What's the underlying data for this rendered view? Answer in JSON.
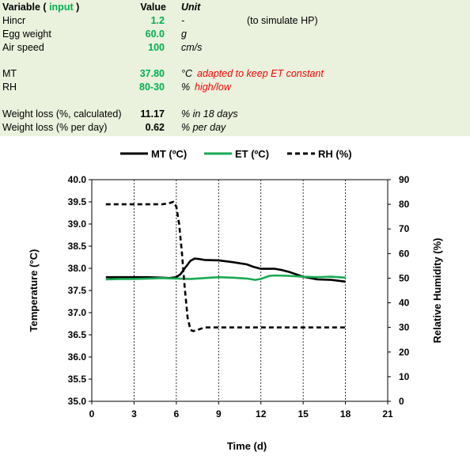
{
  "params": {
    "header": {
      "variable": "Variable (",
      "input_word": "input",
      "close_paren": ")",
      "value": "Value",
      "unit": "Unit"
    },
    "rows": [
      {
        "label": "Hincr",
        "value": "1.2",
        "unit": "-",
        "note": "(to simulate HP)",
        "value_color": "#00b050"
      },
      {
        "label": "Egg weight",
        "value": "60.0",
        "unit": "g",
        "note": "",
        "value_color": "#00b050"
      },
      {
        "label": "Air speed",
        "value": "100",
        "unit": "cm/s",
        "note": "",
        "value_color": "#00b050"
      },
      {
        "label": "MT",
        "value": "37.80",
        "unit": "°C",
        "note": "adapted to keep ET constant",
        "value_color": "#00b050"
      },
      {
        "label": "RH",
        "value": "80-30",
        "unit": "%",
        "note": "high/low",
        "value_color": "#00b050"
      },
      {
        "label": "Weight loss (%, calculated)",
        "value": "11.17",
        "unit": "% in 18 days",
        "note": "",
        "value_color": "#000000"
      },
      {
        "label": "Weight loss (% per day)",
        "value": "0.62",
        "unit": "% per day",
        "note": "",
        "value_color": "#000000"
      }
    ]
  },
  "chart_data": {
    "type": "line",
    "xlabel": "Time (d)",
    "ylabel": "Temperature (°C)",
    "y2label": "Relative Humidity (%)",
    "xlim": [
      0,
      21
    ],
    "ylim": [
      35.0,
      40.0
    ],
    "y2lim": [
      0,
      90
    ],
    "x_ticks": [
      0,
      3,
      6,
      9,
      12,
      15,
      18,
      21
    ],
    "x_tick_labels": [
      "0",
      "3",
      "6",
      "9",
      "12",
      "15",
      "18",
      "21"
    ],
    "y_ticks": [
      35.0,
      35.5,
      36.0,
      36.5,
      37.0,
      37.5,
      38.0,
      38.5,
      39.0,
      39.5,
      40.0
    ],
    "y_tick_labels": [
      "35.0",
      "35.5",
      "36.0",
      "36.5",
      "37.0",
      "37.5",
      "38.0",
      "38.5",
      "39.0",
      "39.5",
      "40.0"
    ],
    "y2_ticks": [
      0,
      10,
      20,
      30,
      40,
      50,
      60,
      70,
      80,
      90
    ],
    "y2_tick_labels": [
      "0",
      "10",
      "20",
      "30",
      "40",
      "50",
      "60",
      "70",
      "80",
      "90"
    ],
    "vertical_grid": true,
    "legend_position": "top",
    "series": [
      {
        "name": "MT (ºC)",
        "axis": "left",
        "color": "#000000",
        "style": "solid",
        "x": [
          1,
          2,
          3,
          4,
          5,
          5.5,
          6,
          6.3,
          6.6,
          7,
          7.3,
          7.6,
          8,
          9,
          10,
          11,
          11.5,
          12,
          12.5,
          13,
          13.5,
          14,
          15,
          16,
          17,
          18
        ],
        "y": [
          37.8,
          37.8,
          37.8,
          37.8,
          37.79,
          37.78,
          37.8,
          37.87,
          38.0,
          38.17,
          38.22,
          38.21,
          38.19,
          38.18,
          38.14,
          38.09,
          38.03,
          37.99,
          37.99,
          37.99,
          37.96,
          37.92,
          37.81,
          37.75,
          37.74,
          37.7
        ]
      },
      {
        "name": "ET (ºC)",
        "axis": "left",
        "color": "#1aaa55",
        "style": "solid",
        "x": [
          1,
          2,
          3,
          4,
          5,
          6,
          7,
          8,
          9,
          10,
          11,
          11.6,
          12,
          12.6,
          13,
          14,
          15,
          16,
          17,
          18
        ],
        "y": [
          37.75,
          37.76,
          37.76,
          37.77,
          37.78,
          37.77,
          37.76,
          37.78,
          37.8,
          37.79,
          37.77,
          37.74,
          37.76,
          37.83,
          37.84,
          37.83,
          37.81,
          37.8,
          37.81,
          37.79
        ]
      },
      {
        "name": "RH (%)",
        "axis": "right",
        "color": "#000000",
        "style": "dashed",
        "x": [
          1,
          2,
          3,
          4,
          5,
          5.5,
          5.8,
          6,
          6.2,
          6.4,
          6.6,
          6.8,
          7,
          7.2,
          7.5,
          8,
          9,
          10,
          11,
          12,
          13,
          14,
          15,
          16,
          17,
          18
        ],
        "y": [
          80,
          80,
          80,
          80,
          80,
          80.5,
          81,
          79,
          72,
          60,
          46,
          34,
          29,
          28.5,
          29,
          30,
          30,
          30,
          30,
          30,
          30,
          30,
          30,
          30,
          30,
          30
        ]
      }
    ]
  }
}
